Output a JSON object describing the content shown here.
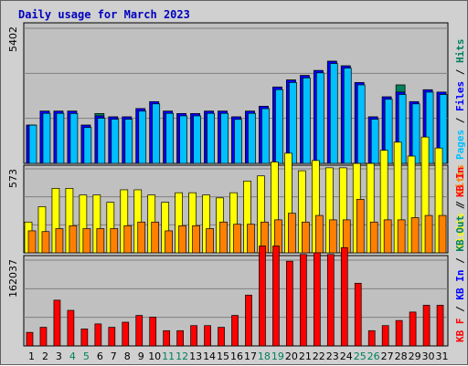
{
  "chart_data": {
    "type": "bar",
    "title": "Daily usage for March 2023",
    "days": [
      "1",
      "2",
      "3",
      "4",
      "5",
      "6",
      "7",
      "8",
      "9",
      "10",
      "11",
      "12",
      "13",
      "14",
      "15",
      "16",
      "17",
      "18",
      "19",
      "20",
      "21",
      "22",
      "23",
      "24",
      "25",
      "26",
      "27",
      "28",
      "29",
      "30",
      "31"
    ],
    "weekend_days": [
      "4",
      "5",
      "11",
      "12",
      "18",
      "19",
      "25",
      "26"
    ],
    "colors": {
      "hits": "#00805c",
      "files": "#0000ff",
      "pages": "#00c0ff",
      "visits": "#ffff00",
      "sites": "#ff8000",
      "kbin": "#ff0000",
      "plot_bg": "#c0c0c0",
      "weekday_tick": "#000000",
      "weekend_tick": "#00805c"
    },
    "panels": [
      {
        "id": "hits-files-pages",
        "ymax_label": "5402",
        "ymax": 5402,
        "legend": [
          {
            "text": "Pages",
            "color": "#00c0ff"
          },
          {
            "text": " / ",
            "color": "#000000"
          },
          {
            "text": "Files",
            "color": "#0000ff"
          },
          {
            "text": " / ",
            "color": "#000000"
          },
          {
            "text": "Hits",
            "color": "#00805c"
          }
        ],
        "series": [
          {
            "name": "Hits",
            "values": [
              1530,
              2090,
              2090,
              2090,
              1530,
              1995,
              1860,
              1860,
              2190,
              2470,
              2090,
              1995,
              1995,
              2090,
              2090,
              1860,
              2090,
              2285,
              3055,
              3335,
              3515,
              3715,
              4085,
              3900,
              3235,
              1860,
              2660,
              3140,
              2470,
              2945,
              2850
            ]
          },
          {
            "name": "Files",
            "values": [
              1530,
              2090,
              2090,
              2090,
              1530,
              1900,
              1860,
              1860,
              2190,
              2470,
              2090,
              1995,
              1995,
              2090,
              2090,
              1860,
              2090,
              2285,
              3055,
              3335,
              3515,
              3715,
              4085,
              3900,
              3235,
              1860,
              2660,
              2850,
              2470,
              2945,
              2850
            ]
          },
          {
            "name": "Pages",
            "values": [
              1530,
              2000,
              2000,
              1995,
              1435,
              1805,
              1765,
              1765,
              2090,
              2380,
              2000,
              1900,
              1900,
              2000,
              2000,
              1760,
              2000,
              2190,
              2950,
              3235,
              3420,
              3620,
              3995,
              3810,
              3140,
              1765,
              2565,
              2755,
              2380,
              2850,
              2755
            ]
          }
        ]
      },
      {
        "id": "visits-sites",
        "ymax_label": "573",
        "ymax": 573,
        "legend": [
          {
            "text": "Visits",
            "color": "#ffff00"
          },
          {
            "text": " / ",
            "color": "#000000"
          },
          {
            "text": "Sites",
            "color": "#ff8000"
          }
        ],
        "series": [
          {
            "name": "Visits",
            "values": [
              210,
              315,
              440,
              440,
              395,
              395,
              345,
              430,
              430,
              395,
              345,
              410,
              410,
              395,
              375,
              410,
              490,
              525,
              620,
              680,
              560,
              630,
              580,
              580,
              610,
              610,
              700,
              755,
              660,
              790,
              715
            ]
          },
          {
            "name": "Sites",
            "values": [
              150,
              145,
              165,
              185,
              165,
              165,
              165,
              185,
              210,
              210,
              150,
              185,
              185,
              165,
              210,
              195,
              195,
              210,
              225,
              270,
              210,
              255,
              225,
              225,
              365,
              210,
              225,
              225,
              240,
              255,
              255
            ]
          }
        ]
      },
      {
        "id": "kbytes",
        "ymax_label": "162037",
        "ymax": 162037,
        "legend": [
          {
            "text": "KB F",
            "color": "#ff0000"
          },
          {
            "text": " / ",
            "color": "#000000"
          },
          {
            "text": "KB In",
            "color": "#0000ff"
          },
          {
            "text": " / ",
            "color": "#000000"
          },
          {
            "text": "KB Out",
            "color": "#00805c"
          },
          {
            "text": " / ",
            "color": "#000000"
          },
          {
            "text": "KB In",
            "color": "#ff0000"
          }
        ],
        "series": [
          {
            "name": "KB In",
            "values": [
              25600,
              35200,
              86400,
              67200,
              32000,
              41600,
              35200,
              44800,
              57600,
              54400,
              28800,
              28800,
              38400,
              38400,
              35200,
              57600,
              96000,
              188800,
              188800,
              160000,
              172800,
              176000,
              172800,
              185600,
              118400,
              28800,
              38400,
              48000,
              64000,
              76800,
              76800
            ]
          }
        ]
      }
    ]
  }
}
